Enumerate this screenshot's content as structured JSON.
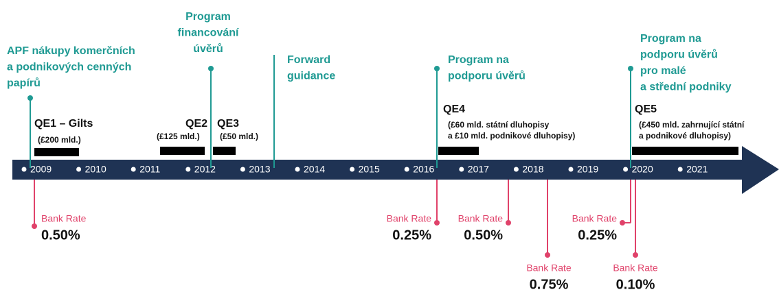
{
  "timeline": {
    "years": [
      "2009",
      "2010",
      "2011",
      "2012",
      "2013",
      "2014",
      "2015",
      "2016",
      "2017",
      "2018",
      "2019",
      "2020",
      "2021"
    ]
  },
  "programs": [
    {
      "lines": [
        "APF nákupy komerčních",
        "a podnikových  cenných",
        "papírů"
      ]
    },
    {
      "lines": [
        "Program",
        "financování",
        "úvěrů"
      ]
    },
    {
      "lines": [
        "Forward",
        "guidance"
      ]
    },
    {
      "lines": [
        "Program na",
        "podporu úvěrů"
      ]
    },
    {
      "lines": [
        "Program na",
        "podporu úvěrů",
        "pro malé",
        "a střední podniky"
      ]
    }
  ],
  "qe": [
    {
      "name": "QE1 – Gilts",
      "amount": [
        "(£200 mld.)"
      ]
    },
    {
      "name": "QE2",
      "amount": [
        "(£125 mld.)"
      ]
    },
    {
      "name": "QE3",
      "amount": [
        "(£50 mld.)"
      ]
    },
    {
      "name": "QE4",
      "amount": [
        "(£60 mld. státní dluhopisy",
        "a £10 mld. podnikové dluhopisy)"
      ]
    },
    {
      "name": "QE5",
      "amount": [
        "(£450 mld. zahrnující státní",
        "a podnikové dluhopisy)"
      ]
    }
  ],
  "bank_rates": [
    {
      "label": "Bank Rate",
      "value": "0.50%"
    },
    {
      "label": "Bank Rate",
      "value": "0.25%"
    },
    {
      "label": "Bank Rate",
      "value": "0.50%"
    },
    {
      "label": "Bank Rate",
      "value": "0.75%"
    },
    {
      "label": "Bank Rate",
      "value": "0.25%"
    },
    {
      "label": "Bank Rate",
      "value": "0.10%"
    }
  ]
}
